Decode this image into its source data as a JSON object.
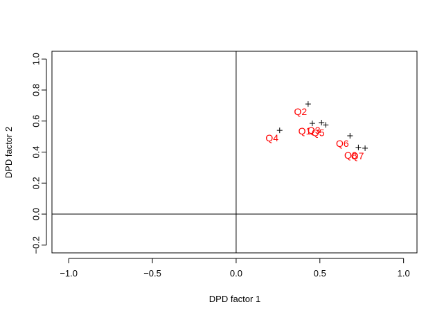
{
  "chart_data": {
    "type": "scatter",
    "xlabel": "DPD factor 1",
    "ylabel": "DPD factor 2",
    "xlim": [
      -1.1,
      1.08
    ],
    "ylim": [
      -0.25,
      1.05
    ],
    "xticks": [
      -1.0,
      -0.5,
      0.0,
      0.5,
      1.0
    ],
    "xtick_labels": [
      "−1.0",
      "−0.5",
      "0.0",
      "0.5",
      "1.0"
    ],
    "yticks": [
      -0.2,
      0.0,
      0.2,
      0.4,
      0.6,
      0.8,
      1.0
    ],
    "ytick_labels": [
      "−0.2",
      "0.0",
      "0.2",
      "0.4",
      "0.6",
      "0.8",
      "1.0"
    ],
    "reference_lines": {
      "x": 0,
      "y": 0
    },
    "grid": false,
    "marker": "+",
    "marker_color": "#000000",
    "label_color": "#ff0000",
    "points": [
      {
        "label": "Q1",
        "x": 0.455,
        "y": 0.585
      },
      {
        "label": "Q2",
        "x": 0.43,
        "y": 0.71
      },
      {
        "label": "Q3",
        "x": 0.51,
        "y": 0.59
      },
      {
        "label": "Q4",
        "x": 0.26,
        "y": 0.54
      },
      {
        "label": "Q5",
        "x": 0.535,
        "y": 0.575
      },
      {
        "label": "Q6",
        "x": 0.68,
        "y": 0.505
      },
      {
        "label": "Q7",
        "x": 0.77,
        "y": 0.425
      },
      {
        "label": "Q8",
        "x": 0.73,
        "y": 0.43
      }
    ]
  }
}
